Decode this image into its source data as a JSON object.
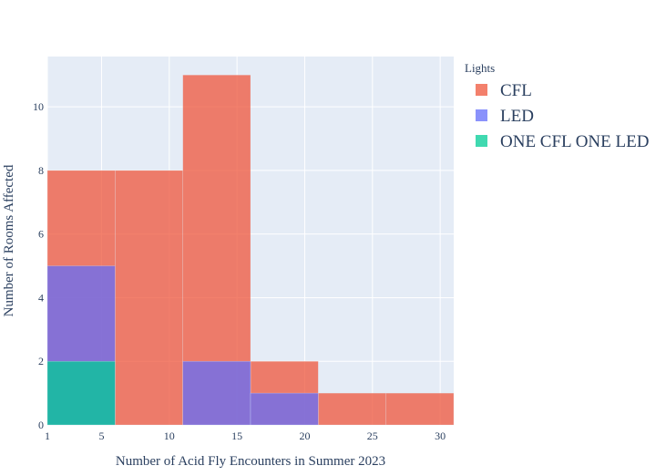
{
  "chart_data": {
    "type": "bar",
    "xlabel": "Number of Acid Fly Encounters in Summer 2023",
    "ylabel": "Number of Rooms Affected",
    "x_ticks": [
      1,
      5,
      10,
      15,
      20,
      25,
      30
    ],
    "y_ticks": [
      0,
      2,
      4,
      6,
      8,
      10
    ],
    "xlim": [
      1,
      31
    ],
    "ylim": [
      0,
      11.58
    ],
    "grid": true,
    "bins": [
      [
        1,
        6
      ],
      [
        6,
        11
      ],
      [
        11,
        16
      ],
      [
        16,
        21
      ],
      [
        21,
        26
      ],
      [
        26,
        31
      ]
    ],
    "bar_mode": "overlay",
    "legend": {
      "title": "Lights",
      "position": "right-top"
    },
    "series": [
      {
        "name": "CFL",
        "color": "#EF553B",
        "counts": [
          8,
          8,
          11,
          2,
          1,
          1
        ]
      },
      {
        "name": "LED",
        "color": "#636EFA",
        "counts": [
          5,
          0,
          2,
          1,
          0,
          0
        ]
      },
      {
        "name": "ONE CFL ONE LED",
        "color": "#00CC96",
        "counts": [
          2,
          0,
          0,
          0,
          0,
          0
        ]
      }
    ],
    "colors": {
      "plot_background": "#E5ECF6",
      "gridline": "#ffffff",
      "text": "#2a3f5f"
    }
  }
}
